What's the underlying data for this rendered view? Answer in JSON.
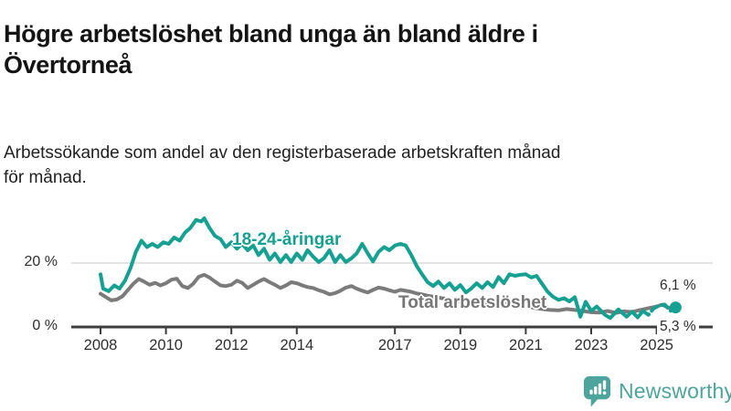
{
  "header": {
    "title_lines": [
      "Högre arbetslöshet bland unga än bland äldre i",
      "Övertorneå"
    ],
    "subtitle_lines": [
      "Arbetssökande som andel av den registerbaserade arbetskraften månad",
      "för månad."
    ]
  },
  "chart_data": {
    "type": "line",
    "title": "Högre arbetslöshet bland unga än bland äldre i Övertorneå",
    "subtitle": "Arbetssökande som andel av den registerbaserade arbetskraften månad för månad.",
    "unit": "%",
    "grid_color": "#DADADA",
    "axis_color": "#3D3D3D",
    "x_axis": {
      "ticks": [
        2008,
        2010,
        2012,
        2014,
        2017,
        2019,
        2021,
        2023,
        2025
      ],
      "range_years": [
        2007.1,
        2026.2
      ]
    },
    "y_axis": {
      "ticks": [
        {
          "value": 0,
          "label": "0 %"
        },
        {
          "value": 20,
          "label": "20 %"
        }
      ],
      "range": [
        0,
        36
      ],
      "gridlines": [
        20
      ]
    },
    "series": [
      {
        "name": "18-24-åringar",
        "color": "#16A091",
        "end_label": "6,1 %",
        "end_value": 6.1,
        "end_dot": true,
        "dashed_from": 2024.58,
        "points": [
          [
            2008.0,
            16.5
          ],
          [
            2008.08,
            12.0
          ],
          [
            2008.25,
            11.2
          ],
          [
            2008.42,
            13.0
          ],
          [
            2008.58,
            12.0
          ],
          [
            2008.75,
            14.5
          ],
          [
            2008.92,
            18.5
          ],
          [
            2009.08,
            23.5
          ],
          [
            2009.25,
            27.0
          ],
          [
            2009.42,
            25.0
          ],
          [
            2009.58,
            26.0
          ],
          [
            2009.75,
            25.0
          ],
          [
            2009.92,
            26.5
          ],
          [
            2010.08,
            26.0
          ],
          [
            2010.25,
            28.0
          ],
          [
            2010.42,
            27.0
          ],
          [
            2010.58,
            29.5
          ],
          [
            2010.75,
            31.0
          ],
          [
            2010.92,
            33.5
          ],
          [
            2011.08,
            33.0
          ],
          [
            2011.17,
            34.0
          ],
          [
            2011.33,
            31.0
          ],
          [
            2011.5,
            28.5
          ],
          [
            2011.67,
            27.5
          ],
          [
            2011.83,
            25.0
          ],
          [
            2012.0,
            26.5
          ],
          [
            2012.17,
            24.5
          ],
          [
            2012.33,
            26.0
          ],
          [
            2012.5,
            24.0
          ],
          [
            2012.67,
            25.5
          ],
          [
            2012.83,
            22.5
          ],
          [
            2013.0,
            24.5
          ],
          [
            2013.17,
            21.0
          ],
          [
            2013.33,
            23.0
          ],
          [
            2013.5,
            20.3
          ],
          [
            2013.67,
            22.5
          ],
          [
            2013.83,
            20.3
          ],
          [
            2014.0,
            23.0
          ],
          [
            2014.17,
            21.0
          ],
          [
            2014.33,
            24.0
          ],
          [
            2014.5,
            22.0
          ],
          [
            2014.67,
            20.3
          ],
          [
            2014.83,
            21.5
          ],
          [
            2015.0,
            24.0
          ],
          [
            2015.17,
            20.3
          ],
          [
            2015.33,
            22.5
          ],
          [
            2015.5,
            20.3
          ],
          [
            2015.67,
            21.5
          ],
          [
            2015.83,
            23.0
          ],
          [
            2016.0,
            26.0
          ],
          [
            2016.17,
            23.0
          ],
          [
            2016.33,
            20.5
          ],
          [
            2016.5,
            23.5
          ],
          [
            2016.67,
            25.0
          ],
          [
            2016.83,
            24.0
          ],
          [
            2017.0,
            25.5
          ],
          [
            2017.17,
            26.0
          ],
          [
            2017.33,
            25.5
          ],
          [
            2017.5,
            22.5
          ],
          [
            2017.67,
            19.0
          ],
          [
            2017.83,
            16.5
          ],
          [
            2018.0,
            14.0
          ],
          [
            2018.17,
            12.8
          ],
          [
            2018.33,
            14.2
          ],
          [
            2018.5,
            12.2
          ],
          [
            2018.67,
            13.7
          ],
          [
            2018.83,
            11.6
          ],
          [
            2019.0,
            13.1
          ],
          [
            2019.17,
            10.8
          ],
          [
            2019.33,
            12.0
          ],
          [
            2019.5,
            13.7
          ],
          [
            2019.67,
            12.2
          ],
          [
            2019.83,
            14.0
          ],
          [
            2020.0,
            12.5
          ],
          [
            2020.17,
            15.6
          ],
          [
            2020.33,
            13.7
          ],
          [
            2020.5,
            16.5
          ],
          [
            2020.67,
            16.0
          ],
          [
            2020.83,
            16.3
          ],
          [
            2021.0,
            16.5
          ],
          [
            2021.17,
            15.5
          ],
          [
            2021.33,
            16.0
          ],
          [
            2021.5,
            13.5
          ],
          [
            2021.67,
            11.0
          ],
          [
            2021.83,
            9.5
          ],
          [
            2022.0,
            8.5
          ],
          [
            2022.17,
            9.0
          ],
          [
            2022.33,
            8.0
          ],
          [
            2022.5,
            9.3
          ],
          [
            2022.67,
            3.2
          ],
          [
            2022.83,
            7.9
          ],
          [
            2023.0,
            5.0
          ],
          [
            2023.17,
            6.4
          ],
          [
            2023.42,
            3.8
          ],
          [
            2023.58,
            2.8
          ],
          [
            2023.83,
            5.5
          ],
          [
            2024.08,
            3.2
          ],
          [
            2024.25,
            4.8
          ],
          [
            2024.42,
            3.0
          ],
          [
            2024.58,
            5.0
          ],
          [
            2024.75,
            3.8
          ],
          [
            2024.92,
            5.9
          ],
          [
            2025.08,
            6.7
          ],
          [
            2025.25,
            7.0
          ],
          [
            2025.42,
            5.0
          ],
          [
            2025.58,
            6.1
          ]
        ]
      },
      {
        "name": "Total arbetslöshet",
        "color": "#7B7B7B",
        "end_label": "5,3 %",
        "end_value": 5.3,
        "end_dot": false,
        "points": [
          [
            2008.0,
            10.4
          ],
          [
            2008.17,
            9.3
          ],
          [
            2008.33,
            8.3
          ],
          [
            2008.5,
            8.6
          ],
          [
            2008.67,
            9.6
          ],
          [
            2008.83,
            11.5
          ],
          [
            2009.0,
            13.5
          ],
          [
            2009.17,
            15.0
          ],
          [
            2009.33,
            14.2
          ],
          [
            2009.5,
            13.2
          ],
          [
            2009.67,
            13.8
          ],
          [
            2009.83,
            13.0
          ],
          [
            2010.0,
            13.7
          ],
          [
            2010.17,
            14.8
          ],
          [
            2010.33,
            15.1
          ],
          [
            2010.5,
            12.8
          ],
          [
            2010.67,
            12.2
          ],
          [
            2010.83,
            13.5
          ],
          [
            2011.0,
            15.7
          ],
          [
            2011.17,
            16.3
          ],
          [
            2011.33,
            15.5
          ],
          [
            2011.5,
            14.2
          ],
          [
            2011.67,
            13.0
          ],
          [
            2011.83,
            12.8
          ],
          [
            2012.0,
            13.2
          ],
          [
            2012.17,
            14.5
          ],
          [
            2012.33,
            13.8
          ],
          [
            2012.5,
            12.2
          ],
          [
            2012.67,
            13.2
          ],
          [
            2012.83,
            14.2
          ],
          [
            2013.0,
            15.0
          ],
          [
            2013.17,
            14.0
          ],
          [
            2013.33,
            13.2
          ],
          [
            2013.5,
            12.2
          ],
          [
            2013.67,
            13.0
          ],
          [
            2013.83,
            14.0
          ],
          [
            2014.0,
            13.7
          ],
          [
            2014.17,
            13.0
          ],
          [
            2014.33,
            12.5
          ],
          [
            2014.5,
            12.2
          ],
          [
            2014.67,
            11.5
          ],
          [
            2014.83,
            11.0
          ],
          [
            2015.0,
            10.2
          ],
          [
            2015.17,
            10.6
          ],
          [
            2015.33,
            11.3
          ],
          [
            2015.5,
            12.3
          ],
          [
            2015.67,
            12.8
          ],
          [
            2015.83,
            12.0
          ],
          [
            2016.0,
            11.3
          ],
          [
            2016.17,
            10.8
          ],
          [
            2016.33,
            11.6
          ],
          [
            2016.5,
            12.3
          ],
          [
            2016.67,
            12.0
          ],
          [
            2016.83,
            11.5
          ],
          [
            2017.0,
            11.0
          ],
          [
            2017.17,
            11.6
          ],
          [
            2017.33,
            11.3
          ],
          [
            2017.5,
            11.0
          ],
          [
            2017.67,
            10.5
          ],
          [
            2017.83,
            10.2
          ],
          [
            2018.0,
            9.8
          ],
          [
            2018.25,
            9.3
          ],
          [
            2018.5,
            8.9
          ],
          [
            2018.75,
            8.4
          ],
          [
            2019.0,
            8.0
          ],
          [
            2019.25,
            7.7
          ],
          [
            2019.5,
            7.4
          ],
          [
            2019.75,
            7.2
          ],
          [
            2020.0,
            7.0
          ],
          [
            2020.25,
            7.6
          ],
          [
            2020.5,
            7.4
          ],
          [
            2020.75,
            7.0
          ],
          [
            2021.0,
            6.6
          ],
          [
            2021.25,
            6.0
          ],
          [
            2021.5,
            5.6
          ],
          [
            2021.75,
            5.3
          ],
          [
            2022.0,
            5.2
          ],
          [
            2022.25,
            5.6
          ],
          [
            2022.5,
            5.3
          ],
          [
            2022.75,
            5.0
          ],
          [
            2023.0,
            4.6
          ],
          [
            2023.25,
            4.5
          ],
          [
            2023.5,
            5.0
          ],
          [
            2023.75,
            4.4
          ],
          [
            2024.0,
            4.9
          ],
          [
            2024.25,
            4.7
          ],
          [
            2024.5,
            5.3
          ],
          [
            2024.75,
            5.9
          ],
          [
            2025.0,
            6.4
          ],
          [
            2025.17,
            7.0
          ],
          [
            2025.33,
            6.2
          ],
          [
            2025.5,
            5.6
          ],
          [
            2025.58,
            5.3
          ]
        ]
      }
    ]
  },
  "footer": {
    "brand": "Newsworthy",
    "brand_color": "#4DA49C"
  }
}
